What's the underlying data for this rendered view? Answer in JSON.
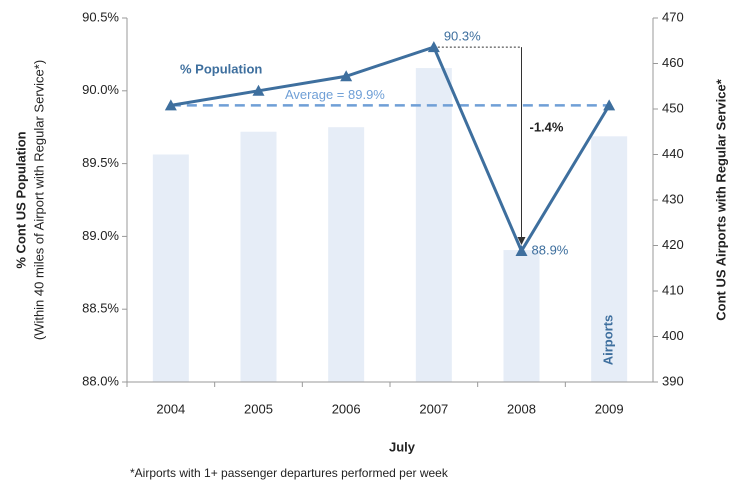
{
  "chart_data": {
    "type": "bar-line",
    "categories": [
      "2004",
      "2005",
      "2006",
      "2007",
      "2008",
      "2009"
    ],
    "series": [
      {
        "name": "Airports",
        "type": "bar",
        "axis": "y2",
        "color": "#e6edf7",
        "values": [
          440,
          445,
          446,
          459,
          419,
          444
        ]
      },
      {
        "name": "% Population",
        "type": "line",
        "axis": "y",
        "color": "#3e6f9e",
        "values": [
          89.9,
          90.0,
          90.1,
          90.3,
          88.9,
          89.9
        ],
        "value_labels": [
          null,
          null,
          null,
          "90.3%",
          "88.9%",
          null
        ]
      }
    ],
    "ylim": [
      88.0,
      90.5
    ],
    "yticks": [
      {
        "value": 88.0,
        "label": "88.0%"
      },
      {
        "value": 88.5,
        "label": "88.5%"
      },
      {
        "value": 89.0,
        "label": "89.0%"
      },
      {
        "value": 89.5,
        "label": "89.5%"
      },
      {
        "value": 90.0,
        "label": "90.0%"
      },
      {
        "value": 90.5,
        "label": "90.5%"
      }
    ],
    "y2lim": [
      390,
      470
    ],
    "y2ticks": [
      390,
      400,
      410,
      420,
      430,
      440,
      450,
      460,
      470
    ],
    "average": {
      "value": 89.9,
      "label": "Average = 89.9%",
      "color": "#6f9fd6"
    },
    "change_annotation": "-1.4%",
    "x_label": "July",
    "y_label": [
      "% Cont US Population",
      "(Within 40 miles of Airport with Regular Service*)"
    ],
    "y2_label": "Cont US Airports with Regular Service*",
    "footnote": "*Airports with 1+ passenger departures performed per week"
  }
}
